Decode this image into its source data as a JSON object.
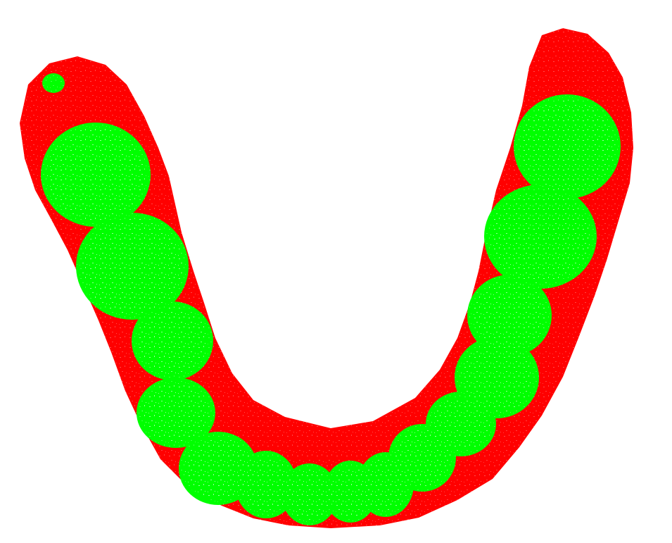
{
  "view": {
    "background": "#ffffff"
  },
  "colors": {
    "gum": "#ff0000",
    "tooth": "#00ff00",
    "speckle": "#ffffff"
  },
  "legend": []
}
